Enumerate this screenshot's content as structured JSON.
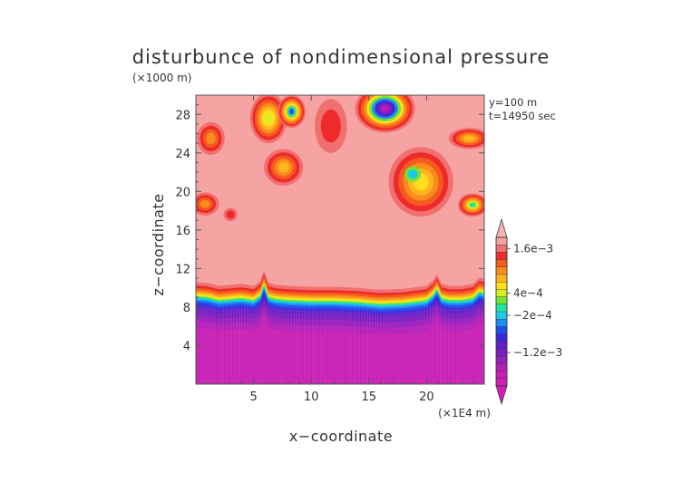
{
  "chart_data": {
    "type": "heatmap",
    "title": "disturbunce of nondimensional pressure",
    "y_unit_label": "(×1000 m)",
    "x_unit_label": "(×1E4 m)",
    "xlabel": "x−coordinate",
    "ylabel": "z−coordinate",
    "info_lines": [
      "y=100 m",
      "t=14950 sec"
    ],
    "xlim": [
      0,
      25
    ],
    "ylim": [
      0,
      30
    ],
    "x_ticks": [
      5,
      10,
      15,
      20
    ],
    "y_ticks": [
      4,
      8,
      12,
      16,
      20,
      24,
      28
    ],
    "x_tick_labels": [
      "5",
      "10",
      "15",
      "20"
    ],
    "y_tick_labels": [
      "4",
      "8",
      "12",
      "16",
      "20",
      "24",
      "28"
    ],
    "colorbar": {
      "labels": [
        {
          "value": 0.0016,
          "text": "1.6e−3"
        },
        {
          "value": 0.0004,
          "text": "4e−4"
        },
        {
          "value": -0.0002,
          "text": "−2e−4"
        },
        {
          "value": -0.0012,
          "text": "−1.2e−3"
        }
      ],
      "levels": [
        {
          "max": 0.0018,
          "color": "#f5a3a3"
        },
        {
          "max": 0.0016,
          "color": "#f07070"
        },
        {
          "max": 0.0014,
          "color": "#ee2a2a"
        },
        {
          "max": 0.0012,
          "color": "#f55a1e"
        },
        {
          "max": 0.001,
          "color": "#f98c1e"
        },
        {
          "max": 0.0008,
          "color": "#ffb41e"
        },
        {
          "max": 0.0006,
          "color": "#ffde1e"
        },
        {
          "max": 0.0004,
          "color": "#d8ee1e"
        },
        {
          "max": 0.0002,
          "color": "#6ee632"
        },
        {
          "max": 0.0,
          "color": "#1ee6a0"
        },
        {
          "max": -0.0002,
          "color": "#1ec8e6"
        },
        {
          "max": -0.0004,
          "color": "#1e8cf5"
        },
        {
          "max": -0.0006,
          "color": "#1e50f0"
        },
        {
          "max": -0.0008,
          "color": "#3c28dc"
        },
        {
          "max": -0.001,
          "color": "#6420c8"
        },
        {
          "max": -0.0012,
          "color": "#7a1ec0"
        },
        {
          "max": -0.0014,
          "color": "#961ebe"
        },
        {
          "max": -0.0016,
          "color": "#b41eb9"
        },
        {
          "max": -0.0018,
          "color": "#c81eb4"
        },
        {
          "max": -0.002,
          "color": "#d21eb4"
        }
      ],
      "upper_color": "#f7b2b2",
      "lower_color": "#d21eb4"
    },
    "field": {
      "background_value": 0.0017,
      "lower_value": -0.0019,
      "interface_z": [
        [
          0,
          9.1
        ],
        [
          1,
          9.0
        ],
        [
          2,
          8.7
        ],
        [
          3,
          8.8
        ],
        [
          4,
          8.9
        ],
        [
          5,
          8.7
        ],
        [
          5.6,
          9.2
        ],
        [
          5.9,
          10.3
        ],
        [
          6.3,
          9.0
        ],
        [
          7,
          8.8
        ],
        [
          8,
          8.7
        ],
        [
          10,
          8.6
        ],
        [
          12,
          8.6
        ],
        [
          14,
          8.5
        ],
        [
          16,
          8.3
        ],
        [
          18,
          8.4
        ],
        [
          20,
          8.7
        ],
        [
          20.6,
          9.3
        ],
        [
          20.9,
          9.9
        ],
        [
          21.3,
          8.9
        ],
        [
          22,
          8.7
        ],
        [
          23,
          8.7
        ],
        [
          24,
          8.9
        ],
        [
          24.6,
          9.6
        ],
        [
          25,
          9.4
        ]
      ],
      "interface_band": [
        {
          "offset": 1.5,
          "value": 0.0016
        },
        {
          "offset": 1.15,
          "value": 0.0014
        },
        {
          "offset": 0.9,
          "value": 0.0012
        },
        {
          "offset": 0.65,
          "value": 0.001
        },
        {
          "offset": 0.45,
          "value": 0.0008
        },
        {
          "offset": 0.3,
          "value": 0.0006
        },
        {
          "offset": 0.15,
          "value": 0.0004
        },
        {
          "offset": 0.05,
          "value": 0.0002
        },
        {
          "offset": -0.05,
          "value": 0.0
        },
        {
          "offset": -0.15,
          "value": -0.0002
        },
        {
          "offset": -0.3,
          "value": -0.0004
        },
        {
          "offset": -0.5,
          "value": -0.0006
        },
        {
          "offset": -0.75,
          "value": -0.0008
        },
        {
          "offset": -1.0,
          "value": -0.001
        },
        {
          "offset": -1.4,
          "value": -0.0012
        },
        {
          "offset": -1.9,
          "value": -0.0014
        },
        {
          "offset": -2.5,
          "value": -0.0016
        },
        {
          "offset": -3.2,
          "value": -0.0018
        }
      ],
      "blobs": [
        {
          "x": 1.3,
          "z": 25.5,
          "rx": 1.2,
          "rz": 1.7,
          "values": [
            0.0016,
            0.0014,
            0.0012,
            0.001
          ]
        },
        {
          "x": 0.8,
          "z": 18.7,
          "rx": 1.2,
          "rz": 1.2,
          "values": [
            0.0016,
            0.0014,
            0.0012,
            0.001
          ]
        },
        {
          "x": 3.0,
          "z": 17.6,
          "rx": 0.6,
          "rz": 0.7,
          "values": [
            0.0016,
            0.0014
          ]
        },
        {
          "x": 6.3,
          "z": 27.6,
          "rx": 1.6,
          "rz": 2.6,
          "values": [
            0.0016,
            0.0014,
            0.0012,
            0.001,
            0.0008,
            0.0006,
            0.0004
          ]
        },
        {
          "x": 8.3,
          "z": 28.3,
          "rx": 1.2,
          "rz": 1.7,
          "values": [
            0.0016,
            0.0014,
            0.0012,
            0.001,
            0.0008,
            0.0006,
            0.0002,
            -0.0002,
            -0.0006
          ]
        },
        {
          "x": 7.6,
          "z": 22.5,
          "rx": 1.7,
          "rz": 1.9,
          "values": [
            0.0016,
            0.0014,
            0.0012,
            0.001,
            0.0008
          ]
        },
        {
          "x": 11.7,
          "z": 26.8,
          "rx": 1.4,
          "rz": 2.8,
          "values": [
            0.0016,
            0.0014
          ]
        },
        {
          "x": 16.4,
          "z": 28.6,
          "rx": 2.6,
          "rz": 2.5,
          "values": [
            0.0016,
            0.0014,
            0.0012,
            0.001,
            0.0006,
            0.0002,
            -0.0004,
            -0.0008,
            -0.0012,
            -0.0016
          ]
        },
        {
          "x": 19.5,
          "z": 21.0,
          "rx": 2.8,
          "rz": 3.6,
          "values": [
            0.0016,
            0.0014,
            0.0012,
            0.001,
            0.0008,
            0.0006
          ]
        },
        {
          "x": 18.8,
          "z": 21.8,
          "rx": 0.7,
          "rz": 0.8,
          "values": [
            0.0002,
            -0.0002
          ]
        },
        {
          "x": 23.7,
          "z": 25.5,
          "rx": 1.8,
          "rz": 1.1,
          "values": [
            0.0016,
            0.0014,
            0.0012,
            0.001,
            0.0008
          ]
        },
        {
          "x": 24.0,
          "z": 18.6,
          "rx": 1.3,
          "rz": 1.2,
          "values": [
            0.0016,
            0.0014,
            0.0012,
            0.001,
            0.0008,
            0.0004,
            0.0
          ]
        }
      ]
    }
  }
}
